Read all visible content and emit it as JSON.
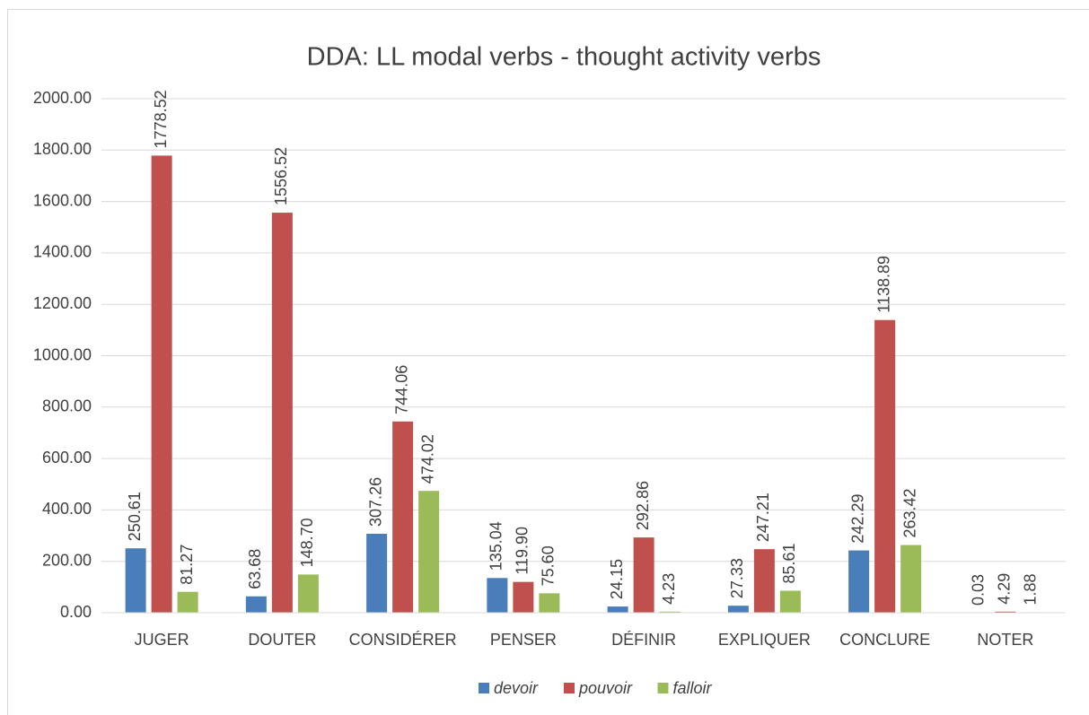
{
  "chart_data": {
    "type": "bar",
    "title": "DDA: LL modal verbs - thought activity verbs",
    "categories": [
      "JUGER",
      "DOUTER",
      "CONSIDÉRER",
      "PENSER",
      "DÉFINIR",
      "EXPLIQUER",
      "CONCLURE",
      "NOTER"
    ],
    "series": [
      {
        "name": "devoir",
        "color": "#4a7ebb",
        "values": [
          250.61,
          63.68,
          307.26,
          135.04,
          24.15,
          27.33,
          242.29,
          0.03
        ],
        "value_labels": [
          "250.61",
          "63.68",
          "307.26",
          "135.04",
          "24.15",
          "27.33",
          "242.29",
          "0.03"
        ]
      },
      {
        "name": "pouvoir",
        "color": "#c0504d",
        "values": [
          1778.52,
          1556.52,
          744.06,
          119.9,
          292.86,
          247.21,
          1138.89,
          4.29
        ],
        "value_labels": [
          "1778.52",
          "1556.52",
          "744.06",
          "119.90",
          "292.86",
          "247.21",
          "1138.89",
          "4.29"
        ]
      },
      {
        "name": "falloir",
        "color": "#9bbb59",
        "values": [
          81.27,
          148.7,
          474.02,
          75.6,
          4.23,
          85.61,
          263.42,
          1.88
        ],
        "value_labels": [
          "81.27",
          "148.70",
          "474.02",
          "75.60",
          "4.23",
          "85.61",
          "263.42",
          "1.88"
        ]
      }
    ],
    "ylim": [
      0,
      2000
    ],
    "yticks": [
      {
        "value": 0,
        "label": "0.00"
      },
      {
        "value": 200,
        "label": "200.00"
      },
      {
        "value": 400,
        "label": "400.00"
      },
      {
        "value": 600,
        "label": "600.00"
      },
      {
        "value": 800,
        "label": "800.00"
      },
      {
        "value": 1000,
        "label": "1000.00"
      },
      {
        "value": 1200,
        "label": "1200.00"
      },
      {
        "value": 1400,
        "label": "1400.00"
      },
      {
        "value": 1600,
        "label": "1600.00"
      },
      {
        "value": 1800,
        "label": "1800.00"
      },
      {
        "value": 2000,
        "label": "2000.00"
      }
    ],
    "grid": true,
    "legend": "bottom"
  }
}
